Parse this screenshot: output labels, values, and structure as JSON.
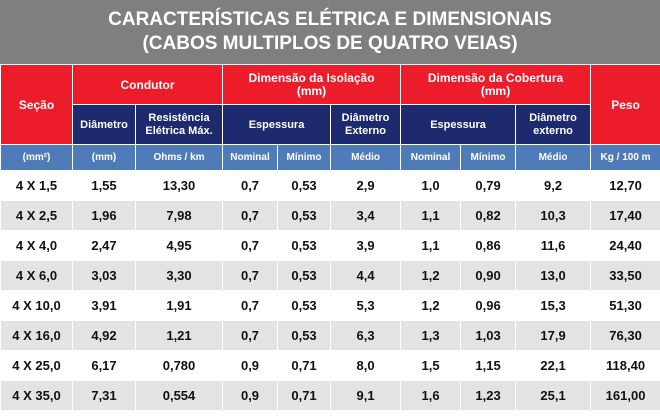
{
  "title": [
    "CARACTERÍSTICAS ELÉTRICA E DIMENSIONAIS",
    "(CABOS MULTIPLOS DE QUATRO VEIAS)"
  ],
  "header": {
    "secao": "Seção",
    "condutor": "Condutor",
    "isolacao": [
      "Dimensão da Isolação",
      "(mm)"
    ],
    "cobertura": [
      "Dimensão da Cobertura",
      "(mm)"
    ],
    "peso": "Peso",
    "diametro": "Diâmetro",
    "resistencia": [
      "Resistência",
      "Elétrica Máx."
    ],
    "espessura_iso": "Espessura",
    "diametro_externo_iso": [
      "Diâmetro",
      "Externo"
    ],
    "espessura_cob": "Espessura",
    "diametro_externo_cob": [
      "Diâmetro",
      "externo"
    ]
  },
  "units": [
    "(mm²)",
    "(mm)",
    "Ohms / km",
    "Nominal",
    "Mínimo",
    "Médio",
    "Nominal",
    "Mínimo",
    "Médio",
    "Kg / 100 m"
  ],
  "rows": [
    [
      "4 X 1,5",
      "1,55",
      "13,30",
      "0,7",
      "0,53",
      "2,9",
      "1,0",
      "0,79",
      "9,2",
      "12,70"
    ],
    [
      "4 X 2,5",
      "1,96",
      "7,98",
      "0,7",
      "0,53",
      "3,4",
      "1,1",
      "0,82",
      "10,3",
      "17,40"
    ],
    [
      "4 X 4,0",
      "2,47",
      "4,95",
      "0,7",
      "0,53",
      "3,9",
      "1,1",
      "0,86",
      "11,6",
      "24,40"
    ],
    [
      "4 X 6,0",
      "3,03",
      "3,30",
      "0,7",
      "0,53",
      "4,4",
      "1,2",
      "0,90",
      "13,0",
      "33,50"
    ],
    [
      "4 X 10,0",
      "3,91",
      "1,91",
      "0,7",
      "0,53",
      "5,3",
      "1,2",
      "0,96",
      "15,3",
      "51,30"
    ],
    [
      "4 X 16,0",
      "4,92",
      "1,21",
      "0,7",
      "0,53",
      "6,3",
      "1,3",
      "1,03",
      "17,9",
      "76,30"
    ],
    [
      "4 X 25,0",
      "6,17",
      "0,780",
      "0,9",
      "0,71",
      "8,0",
      "1,5",
      "1,15",
      "22,1",
      "118,40"
    ],
    [
      "4 X 35,0",
      "7,31",
      "0,554",
      "0,9",
      "0,71",
      "9,1",
      "1,6",
      "1,23",
      "25,1",
      "161,00"
    ]
  ]
}
